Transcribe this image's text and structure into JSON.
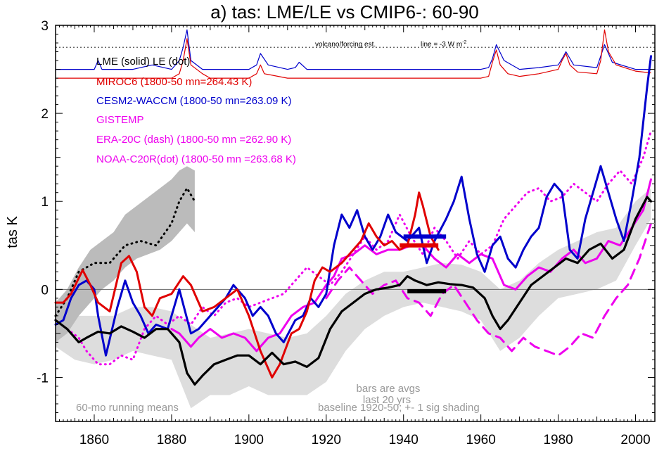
{
  "chart_data": {
    "type": "line",
    "title": "a) tas: LME/LE vs CMIP6-: 60-90",
    "xlabel": "",
    "ylabel": "tas K",
    "xlim": [
      1850,
      2005
    ],
    "ylim": [
      -1.5,
      3.0
    ],
    "x_ticks": [
      1860,
      1880,
      1900,
      1920,
      1940,
      1960,
      1980,
      2000
    ],
    "y_ticks": [
      -1,
      0,
      1,
      2,
      3
    ],
    "y_tick_labels": [
      "-1",
      "0",
      "1",
      "2",
      "3"
    ],
    "zero_line": 0,
    "legend": [
      {
        "text": "LME (solid)   LE (dot)",
        "color": "#000000"
      },
      {
        "text": "MIROC6 (1800-50 mn=264.43 K)",
        "color": "#e00000"
      },
      {
        "text": "CESM2-WACCM (1800-50 mn=263.09 K)",
        "color": "#0000cc"
      },
      {
        "text": "GISTEMP",
        "color": "#ee00ee"
      },
      {
        "text": "ERA-20C (dash) (1800-50 mn =262.90 K)",
        "color": "#ee00ee"
      },
      {
        "text": "NOAA-C20R(dot) (1800-50 mn =263.68 K)",
        "color": "#ee00ee"
      }
    ],
    "annotations": {
      "volcano_label": "volcano/forcing est.",
      "line_label": "line = -3 W m",
      "line_label_sup": "-2",
      "bars_note": "bars are avgs",
      "last_note": "last 20 yrs",
      "running_note": "60-mo running means",
      "baseline_note": "baseline 1920-50; +- 1 sig shading"
    },
    "forcing_reference_y": 2.75,
    "series": [
      {
        "name": "LME (solid)",
        "color": "#000000",
        "style": "solid",
        "width": 3.2,
        "x": [
          1850,
          1853,
          1856,
          1858,
          1861,
          1864,
          1867,
          1870,
          1873,
          1876,
          1879,
          1882,
          1884,
          1886,
          1888,
          1891,
          1894,
          1897,
          1900,
          1903,
          1906,
          1909,
          1912,
          1915,
          1918,
          1921,
          1924,
          1927,
          1930,
          1933,
          1936,
          1939,
          1941,
          1943,
          1946,
          1949,
          1952,
          1955,
          1958,
          1961,
          1963,
          1965,
          1967,
          1970,
          1973,
          1976,
          1979,
          1982,
          1985,
          1988,
          1991,
          1994,
          1997,
          2000,
          2003,
          2004
        ],
        "values": [
          -0.35,
          -0.45,
          -0.6,
          -0.55,
          -0.48,
          -0.5,
          -0.42,
          -0.48,
          -0.55,
          -0.45,
          -0.45,
          -0.6,
          -0.95,
          -1.08,
          -0.98,
          -0.85,
          -0.8,
          -0.75,
          -0.75,
          -0.85,
          -0.72,
          -0.85,
          -0.82,
          -0.88,
          -0.78,
          -0.45,
          -0.25,
          -0.15,
          -0.05,
          0.0,
          0.02,
          0.05,
          0.15,
          0.1,
          0.05,
          0.08,
          0.06,
          0.05,
          0.02,
          -0.1,
          -0.3,
          -0.45,
          -0.35,
          -0.15,
          0.05,
          0.15,
          0.25,
          0.35,
          0.3,
          0.45,
          0.52,
          0.35,
          0.45,
          0.8,
          1.05,
          1.0
        ]
      },
      {
        "name": "LE (dot)",
        "color": "#000000",
        "style": "dot",
        "width": 3,
        "x": [
          1850,
          1853,
          1856,
          1860,
          1864,
          1868,
          1872,
          1876,
          1880,
          1882,
          1884,
          1886
        ],
        "values": [
          -0.3,
          -0.1,
          0.2,
          0.3,
          0.3,
          0.5,
          0.55,
          0.5,
          0.75,
          1.0,
          1.15,
          1.0
        ]
      },
      {
        "name": "MIROC6",
        "color": "#e00000",
        "style": "solid",
        "width": 3,
        "x": [
          1850,
          1852,
          1854,
          1857,
          1859,
          1861,
          1864,
          1867,
          1869,
          1871,
          1873,
          1875,
          1877,
          1880,
          1883,
          1885,
          1888,
          1891,
          1894,
          1897,
          1900,
          1903,
          1906,
          1908,
          1911,
          1913,
          1915,
          1917,
          1919,
          1921,
          1924,
          1927,
          1929,
          1931,
          1933,
          1935,
          1937,
          1939,
          1941,
          1943,
          1944,
          1945,
          1947,
          1949
        ],
        "values": [
          -0.15,
          -0.15,
          -0.05,
          0.22,
          0.05,
          -0.15,
          -0.25,
          0.3,
          0.38,
          0.2,
          -0.2,
          -0.3,
          -0.1,
          -0.05,
          0.15,
          0.05,
          -0.25,
          -0.2,
          -0.1,
          0.0,
          -0.3,
          -0.7,
          -1.0,
          -0.85,
          -0.5,
          -0.45,
          -0.25,
          0.1,
          0.25,
          0.2,
          0.3,
          0.45,
          0.55,
          0.75,
          0.6,
          0.5,
          0.55,
          0.45,
          0.5,
          0.85,
          1.1,
          0.95,
          0.6,
          0.45
        ]
      },
      {
        "name": "CESM2-WACCM",
        "color": "#0000cc",
        "style": "solid",
        "width": 3,
        "x": [
          1850,
          1852,
          1854,
          1856,
          1858,
          1860,
          1861,
          1863,
          1866,
          1868,
          1870,
          1872,
          1874,
          1876,
          1879,
          1882,
          1885,
          1887,
          1890,
          1892,
          1894,
          1896,
          1899,
          1901,
          1903,
          1905,
          1907,
          1909,
          1912,
          1914,
          1916,
          1918,
          1920,
          1922,
          1924,
          1926,
          1928,
          1930,
          1932,
          1934,
          1936,
          1938,
          1941,
          1944,
          1946,
          1948,
          1951,
          1953,
          1955,
          1957,
          1959,
          1961,
          1963,
          1965,
          1967,
          1969,
          1971,
          1973,
          1975,
          1977,
          1979,
          1981,
          1983,
          1985,
          1987,
          1989,
          1991,
          1993,
          1995,
          1997,
          1999,
          2001,
          2003,
          2004
        ],
        "values": [
          -0.4,
          -0.35,
          -0.1,
          0.05,
          0.1,
          0.0,
          -0.3,
          -0.75,
          -0.2,
          0.1,
          -0.15,
          -0.3,
          -0.5,
          -0.4,
          -0.45,
          0.0,
          -0.5,
          -0.45,
          -0.3,
          -0.2,
          -0.1,
          0.05,
          -0.1,
          -0.3,
          -0.2,
          -0.3,
          -0.5,
          -0.6,
          -0.35,
          -0.3,
          -0.1,
          -0.2,
          -0.05,
          0.5,
          0.85,
          0.7,
          0.9,
          0.6,
          0.45,
          0.6,
          0.85,
          0.65,
          0.55,
          0.7,
          0.3,
          0.55,
          0.8,
          1.0,
          1.28,
          0.8,
          0.4,
          0.2,
          0.5,
          0.6,
          0.35,
          0.25,
          0.45,
          0.6,
          0.7,
          1.05,
          1.2,
          1.1,
          0.45,
          0.35,
          0.8,
          1.1,
          1.4,
          1.1,
          0.8,
          0.55,
          1.0,
          1.5,
          2.3,
          2.65
        ]
      },
      {
        "name": "GISTEMP",
        "color": "#ee00ee",
        "style": "solid",
        "width": 3,
        "x": [
          1880,
          1882,
          1885,
          1887,
          1890,
          1893,
          1896,
          1899,
          1902,
          1905,
          1908,
          1911,
          1914,
          1917,
          1920,
          1922,
          1924,
          1927,
          1930,
          1933,
          1936,
          1939,
          1942,
          1945,
          1948,
          1951,
          1954,
          1957,
          1960,
          1963,
          1966,
          1969,
          1972,
          1975,
          1978,
          1981,
          1984,
          1987,
          1990,
          1993,
          1996,
          1999,
          2002,
          2004
        ],
        "values": [
          -0.45,
          -0.5,
          -0.65,
          -0.55,
          -0.45,
          -0.55,
          -0.5,
          -0.55,
          -0.7,
          -0.55,
          -0.5,
          -0.3,
          -0.2,
          -0.15,
          0.05,
          0.15,
          0.35,
          0.4,
          0.5,
          0.4,
          0.45,
          0.45,
          0.5,
          0.5,
          0.35,
          0.25,
          0.4,
          0.3,
          0.4,
          0.35,
          0.05,
          0.0,
          0.15,
          0.25,
          0.2,
          0.35,
          0.45,
          0.3,
          0.35,
          0.55,
          0.5,
          0.7,
          0.9,
          1.25
        ]
      },
      {
        "name": "ERA-20C (dash)",
        "color": "#ee00ee",
        "style": "dash",
        "width": 3,
        "x": [
          1920,
          1923,
          1926,
          1929,
          1932,
          1935,
          1938,
          1941,
          1944,
          1947,
          1950,
          1953,
          1956,
          1959,
          1962,
          1965,
          1968,
          1971,
          1974,
          1977,
          1980,
          1983,
          1986,
          1989,
          1992,
          1995,
          1998,
          2001,
          2004
        ],
        "values": [
          -0.1,
          0.1,
          0.25,
          0.1,
          -0.05,
          0.05,
          0.1,
          -0.1,
          -0.15,
          -0.3,
          -0.05,
          0.05,
          -0.15,
          -0.35,
          -0.5,
          -0.55,
          -0.7,
          -0.55,
          -0.65,
          -0.7,
          -0.75,
          -0.65,
          -0.5,
          -0.55,
          -0.3,
          -0.1,
          0.05,
          0.35,
          0.75
        ]
      },
      {
        "name": "NOAA-C20R (dot)",
        "color": "#ee00ee",
        "style": "dot",
        "width": 3,
        "x": [
          1850,
          1853,
          1856,
          1858,
          1861,
          1864,
          1867,
          1870,
          1873,
          1876,
          1879,
          1882,
          1885,
          1888,
          1891,
          1894,
          1897,
          1900,
          1903,
          1906,
          1909,
          1912,
          1915,
          1918,
          1921,
          1924,
          1927,
          1930,
          1933,
          1936,
          1939,
          1942,
          1945,
          1948,
          1951,
          1954,
          1957,
          1960,
          1963,
          1966,
          1969,
          1972,
          1975,
          1978,
          1981,
          1984,
          1987,
          1990,
          1993,
          1996,
          1999,
          2002,
          2004
        ],
        "values": [
          -0.35,
          -0.45,
          -0.55,
          -0.7,
          -0.85,
          -0.85,
          -0.75,
          -0.8,
          -0.45,
          -0.3,
          -0.4,
          -0.3,
          -0.4,
          -0.2,
          -0.3,
          -0.15,
          -0.1,
          -0.2,
          -0.15,
          -0.1,
          -0.05,
          0.1,
          0.25,
          0.15,
          0.05,
          0.2,
          0.4,
          0.6,
          0.45,
          0.55,
          0.85,
          0.6,
          0.4,
          0.7,
          0.55,
          0.35,
          0.55,
          0.4,
          0.5,
          0.8,
          0.95,
          1.1,
          1.15,
          1.0,
          1.05,
          1.2,
          1.1,
          1.0,
          1.2,
          1.35,
          1.2,
          1.5,
          1.8
        ]
      }
    ],
    "spread_band": {
      "color": "#dddddd",
      "x": [
        1850,
        1855,
        1860,
        1865,
        1870,
        1875,
        1880,
        1885,
        1890,
        1895,
        1900,
        1905,
        1910,
        1915,
        1920,
        1925,
        1930,
        1935,
        1940,
        1945,
        1950,
        1955,
        1960,
        1965,
        1970,
        1975,
        1980,
        1985,
        1990,
        1995,
        2000,
        2004
      ],
      "upper": [
        -0.1,
        -0.3,
        -0.3,
        -0.3,
        -0.2,
        -0.2,
        -0.25,
        -0.4,
        -0.55,
        -0.5,
        -0.45,
        -0.5,
        -0.55,
        -0.5,
        -0.3,
        -0.05,
        0.1,
        0.2,
        0.2,
        0.25,
        0.3,
        0.28,
        0.2,
        0.0,
        0.1,
        0.3,
        0.45,
        0.55,
        0.65,
        0.7,
        1.0,
        1.15
      ],
      "lower": [
        -0.65,
        -0.8,
        -0.85,
        -0.8,
        -0.7,
        -0.75,
        -0.8,
        -1.35,
        -1.2,
        -1.2,
        -1.1,
        -1.2,
        -1.2,
        -1.2,
        -1.05,
        -0.7,
        -0.45,
        -0.3,
        -0.2,
        -0.15,
        -0.2,
        -0.25,
        -0.35,
        -0.7,
        -0.55,
        -0.3,
        -0.1,
        -0.05,
        0.0,
        0.1,
        0.5,
        0.8
      ]
    },
    "le_band": {
      "color": "#bbbbbb",
      "x": [
        1850,
        1853,
        1856,
        1859,
        1862,
        1865,
        1868,
        1871,
        1874,
        1877,
        1880,
        1882,
        1884,
        1886
      ],
      "upper": [
        -0.15,
        0.0,
        0.25,
        0.45,
        0.55,
        0.65,
        0.85,
        0.95,
        1.05,
        1.15,
        1.25,
        1.35,
        1.4,
        1.35
      ],
      "lower": [
        -0.6,
        -0.5,
        -0.3,
        -0.15,
        0.0,
        0.1,
        0.25,
        0.35,
        0.4,
        0.45,
        0.55,
        0.65,
        0.75,
        0.65
      ]
    },
    "avg_bars": [
      {
        "name": "CESM2-WACCM last-20yr avg",
        "color": "#0000cc",
        "x": [
          1940,
          1951
        ],
        "y": 0.6
      },
      {
        "name": "MIROC6 last-20yr avg",
        "color": "#e00000",
        "x": [
          1939,
          1949
        ],
        "y": 0.5
      },
      {
        "name": "LME last-20yr avg",
        "color": "#000000",
        "x": [
          1941,
          1951
        ],
        "y": -0.02
      }
    ],
    "forcing_series": [
      {
        "name": "volcanic forcing LME (top)",
        "color": "#0000cc",
        "x": [
          1850,
          1855,
          1860,
          1861,
          1862,
          1865,
          1870,
          1875,
          1880,
          1882,
          1883,
          1884,
          1885,
          1888,
          1890,
          1895,
          1900,
          1902,
          1903,
          1905,
          1910,
          1912,
          1913,
          1915,
          1920,
          1925,
          1930,
          1935,
          1940,
          1945,
          1950,
          1955,
          1960,
          1962,
          1963,
          1964,
          1966,
          1970,
          1975,
          1980,
          1981,
          1982,
          1984,
          1990,
          1991,
          1992,
          1994,
          2000,
          2004
        ],
        "values": [
          2.5,
          2.5,
          2.5,
          2.6,
          2.5,
          2.5,
          2.5,
          2.55,
          2.5,
          2.6,
          2.75,
          2.95,
          2.6,
          2.5,
          2.5,
          2.5,
          2.5,
          2.55,
          2.68,
          2.55,
          2.5,
          2.52,
          2.58,
          2.5,
          2.5,
          2.5,
          2.5,
          2.5,
          2.5,
          2.5,
          2.5,
          2.5,
          2.5,
          2.52,
          2.62,
          2.78,
          2.6,
          2.5,
          2.52,
          2.55,
          2.62,
          2.7,
          2.55,
          2.52,
          2.65,
          2.78,
          2.58,
          2.5,
          2.5
        ]
      },
      {
        "name": "volcanic forcing CMIP6 (bottom)",
        "color": "#e00000",
        "x": [
          1850,
          1855,
          1860,
          1870,
          1880,
          1882,
          1883,
          1884,
          1885,
          1888,
          1890,
          1900,
          1902,
          1903,
          1904,
          1910,
          1920,
          1930,
          1940,
          1950,
          1960,
          1962,
          1963,
          1964,
          1965,
          1967,
          1970,
          1975,
          1980,
          1981,
          1982,
          1983,
          1985,
          1990,
          1991,
          1992,
          1993,
          1995,
          2000,
          2004
        ],
        "values": [
          2.4,
          2.4,
          2.4,
          2.4,
          2.4,
          2.45,
          2.6,
          2.85,
          2.55,
          2.45,
          2.4,
          2.4,
          2.45,
          2.55,
          2.45,
          2.4,
          2.4,
          2.4,
          2.4,
          2.4,
          2.4,
          2.42,
          2.58,
          2.72,
          2.55,
          2.45,
          2.42,
          2.45,
          2.5,
          2.6,
          2.68,
          2.55,
          2.47,
          2.45,
          2.6,
          2.95,
          2.7,
          2.55,
          2.48,
          2.46
        ]
      }
    ]
  }
}
